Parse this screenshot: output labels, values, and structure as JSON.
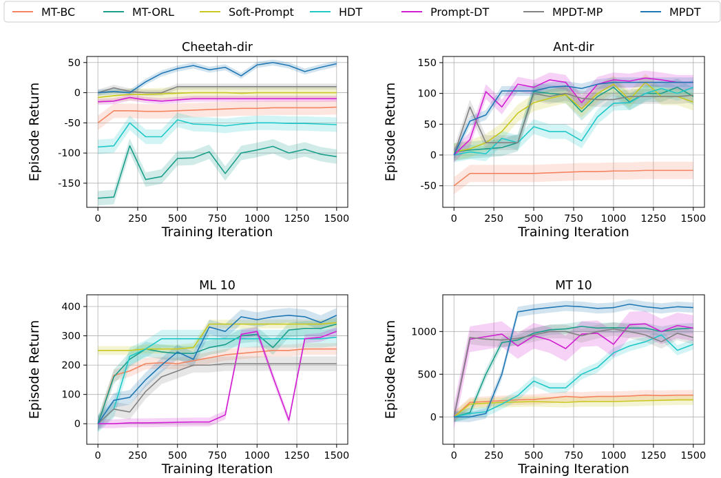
{
  "legend": {
    "placement": "top",
    "items": [
      {
        "label": "MT-BC",
        "color": "#f4845f"
      },
      {
        "label": "MT-ORL",
        "color": "#1a9e8a"
      },
      {
        "label": "Soft-Prompt",
        "color": "#c8c81e"
      },
      {
        "label": "HDT",
        "color": "#1ec8c8"
      },
      {
        "label": "Prompt-DT",
        "color": "#d21ed2"
      },
      {
        "label": "MPDT-MP",
        "color": "#828282"
      },
      {
        "label": "MPDT",
        "color": "#1f77b4"
      }
    ]
  },
  "chart_data": [
    {
      "type": "line",
      "title": "Cheetah-dir",
      "xlabel": "Training Iteration",
      "ylabel": "Episode Return",
      "xlim": [
        -70,
        1570
      ],
      "ylim": [
        -190,
        60
      ],
      "xticks": [
        0,
        250,
        500,
        750,
        1000,
        1250,
        1500
      ],
      "yticks": [
        -150,
        -100,
        -50,
        0,
        50
      ],
      "grid": true,
      "x": [
        0,
        100,
        200,
        300,
        400,
        500,
        600,
        700,
        800,
        900,
        1000,
        1100,
        1200,
        1300,
        1400,
        1500
      ],
      "series": [
        {
          "name": "MT-BC",
          "values": [
            -50,
            -30,
            -30,
            -31,
            -31,
            -30,
            -29,
            -28,
            -27,
            -26,
            -26,
            -25,
            -25,
            -25,
            -25,
            -24
          ],
          "band": 12
        },
        {
          "name": "MT-ORL",
          "values": [
            -175,
            -173,
            -88,
            -144,
            -139,
            -109,
            -108,
            -98,
            -134,
            -100,
            -95,
            -89,
            -100,
            -94,
            -102,
            -106
          ],
          "band": 12
        },
        {
          "name": "Soft-Prompt",
          "values": [
            -8,
            -5,
            -3,
            -3,
            -2,
            -1,
            0,
            0,
            0,
            -1,
            0,
            0,
            0,
            0,
            0,
            0
          ],
          "band": 10
        },
        {
          "name": "HDT",
          "values": [
            -90,
            -88,
            -50,
            -73,
            -73,
            -45,
            -52,
            -53,
            -55,
            -52,
            -50,
            -50,
            -51,
            -51,
            -52,
            -53
          ],
          "band": 12
        },
        {
          "name": "Prompt-DT",
          "values": [
            -15,
            -14,
            -8,
            -12,
            -14,
            -12,
            -10,
            -10,
            -10,
            -10,
            -10,
            -10,
            -10,
            -10,
            -10,
            -10
          ],
          "band": 5
        },
        {
          "name": "MPDT-MP",
          "values": [
            0,
            8,
            2,
            0,
            0,
            10,
            10,
            10,
            10,
            10,
            10,
            10,
            10,
            10,
            10,
            10
          ],
          "band": 5
        },
        {
          "name": "MPDT",
          "values": [
            0,
            2,
            0,
            18,
            32,
            40,
            45,
            38,
            42,
            28,
            46,
            50,
            45,
            35,
            42,
            48
          ],
          "band": 5
        }
      ]
    },
    {
      "type": "line",
      "title": "Ant-dir",
      "xlabel": "Training Iteration",
      "ylabel": "Episode Return",
      "xlim": [
        -70,
        1570
      ],
      "ylim": [
        -85,
        160
      ],
      "xticks": [
        0,
        250,
        500,
        750,
        1000,
        1250,
        1500
      ],
      "yticks": [
        -50,
        0,
        50,
        100,
        150
      ],
      "grid": true,
      "x": [
        0,
        100,
        200,
        300,
        400,
        500,
        600,
        700,
        800,
        900,
        1000,
        1100,
        1200,
        1300,
        1400,
        1500
      ],
      "series": [
        {
          "name": "MT-BC",
          "values": [
            -50,
            -30,
            -30,
            -30,
            -30,
            -30,
            -29,
            -28,
            -27,
            -27,
            -26,
            -26,
            -25,
            -25,
            -25,
            -25
          ],
          "band": 14
        },
        {
          "name": "MT-ORL",
          "values": [
            5,
            8,
            10,
            12,
            20,
            103,
            100,
            98,
            70,
            95,
            110,
            86,
            100,
            100,
            110,
            95
          ],
          "band": 14
        },
        {
          "name": "Soft-Prompt",
          "values": [
            5,
            10,
            20,
            38,
            68,
            85,
            92,
            98,
            75,
            100,
            115,
            90,
            118,
            95,
            95,
            86
          ],
          "band": 14
        },
        {
          "name": "HDT",
          "values": [
            0,
            5,
            2,
            27,
            20,
            46,
            38,
            38,
            23,
            62,
            84,
            85,
            100,
            108,
            100,
            110
          ],
          "band": 12
        },
        {
          "name": "Prompt-DT",
          "values": [
            0,
            25,
            103,
            78,
            115,
            110,
            122,
            118,
            85,
            115,
            122,
            120,
            125,
            122,
            118,
            118
          ],
          "band": 12
        },
        {
          "name": "MPDT-MP",
          "values": [
            0,
            78,
            20,
            20,
            20,
            100,
            95,
            100,
            92,
            90,
            90,
            95,
            95,
            95,
            95,
            97
          ],
          "band": 12
        },
        {
          "name": "MPDT",
          "values": [
            0,
            55,
            65,
            104,
            104,
            104,
            110,
            112,
            108,
            115,
            118,
            118,
            118,
            118,
            118,
            118
          ],
          "band": 8
        }
      ]
    },
    {
      "type": "line",
      "title": "ML 10",
      "xlabel": "Training Iteration",
      "ylabel": "Episode Return",
      "xlim": [
        -70,
        1570
      ],
      "ylim": [
        -70,
        440
      ],
      "xticks": [
        0,
        250,
        500,
        750,
        1000,
        1250,
        1500
      ],
      "yticks": [
        0,
        100,
        200,
        300,
        400
      ],
      "grid": true,
      "x": [
        0,
        100,
        200,
        300,
        400,
        500,
        600,
        700,
        800,
        900,
        1000,
        1100,
        1200,
        1300,
        1400,
        1500
      ],
      "series": [
        {
          "name": "MT-BC",
          "values": [
            0,
            165,
            180,
            205,
            208,
            205,
            215,
            225,
            235,
            240,
            245,
            250,
            250,
            255,
            255,
            255
          ],
          "band": 20
        },
        {
          "name": "MT-ORL",
          "values": [
            0,
            160,
            220,
            255,
            245,
            240,
            240,
            260,
            270,
            300,
            305,
            260,
            320,
            325,
            325,
            340
          ],
          "band": 25
        },
        {
          "name": "Soft-Prompt",
          "values": [
            250,
            250,
            250,
            255,
            255,
            255,
            260,
            340,
            340,
            340,
            340,
            340,
            340,
            340,
            340,
            345
          ],
          "band": 15
        },
        {
          "name": "HDT",
          "values": [
            0,
            50,
            230,
            255,
            290,
            290,
            290,
            290,
            290,
            290,
            290,
            290,
            290,
            290,
            290,
            295
          ],
          "band": 30
        },
        {
          "name": "Prompt-DT",
          "values": [
            0,
            0,
            3,
            3,
            4,
            5,
            6,
            6,
            30,
            305,
            315,
            160,
            12,
            290,
            295,
            315
          ],
          "band": 15
        },
        {
          "name": "MPDT-MP",
          "values": [
            0,
            50,
            40,
            110,
            160,
            180,
            200,
            200,
            205,
            205,
            205,
            205,
            205,
            205,
            205,
            205
          ],
          "band": 25
        },
        {
          "name": "MPDT",
          "values": [
            0,
            80,
            90,
            150,
            200,
            245,
            220,
            330,
            315,
            365,
            355,
            365,
            370,
            365,
            345,
            370
          ],
          "band": 25
        }
      ]
    },
    {
      "type": "line",
      "title": "MT 10",
      "xlabel": "Training Iteration",
      "ylabel": "Episode Return",
      "xlim": [
        -70,
        1570
      ],
      "ylim": [
        -320,
        1430
      ],
      "xticks": [
        0,
        250,
        500,
        750,
        1000,
        1250,
        1500
      ],
      "yticks": [
        0,
        500,
        1000
      ],
      "grid": true,
      "x": [
        0,
        100,
        200,
        300,
        400,
        500,
        600,
        700,
        800,
        900,
        1000,
        1100,
        1200,
        1300,
        1400,
        1500
      ],
      "series": [
        {
          "name": "MT-BC",
          "values": [
            0,
            170,
            180,
            190,
            200,
            205,
            220,
            240,
            230,
            240,
            240,
            245,
            255,
            250,
            255,
            255
          ],
          "band": 60
        },
        {
          "name": "MT-ORL",
          "values": [
            0,
            50,
            500,
            870,
            900,
            980,
            1020,
            1030,
            1060,
            1040,
            1045,
            1040,
            1040,
            1000,
            1030,
            1040
          ],
          "band": 60
        },
        {
          "name": "Soft-Prompt",
          "values": [
            0,
            150,
            160,
            170,
            175,
            180,
            175,
            170,
            180,
            180,
            180,
            185,
            190,
            195,
            200,
            200
          ],
          "band": 60
        },
        {
          "name": "HDT",
          "values": [
            0,
            40,
            60,
            150,
            250,
            420,
            340,
            340,
            500,
            580,
            750,
            830,
            880,
            960,
            780,
            850
          ],
          "band": 60
        },
        {
          "name": "Prompt-DT",
          "values": [
            0,
            910,
            940,
            970,
            830,
            950,
            900,
            800,
            970,
            980,
            850,
            1080,
            1090,
            1000,
            1070,
            1040
          ],
          "band": 150
        },
        {
          "name": "MPDT-MP",
          "values": [
            0,
            930,
            910,
            900,
            920,
            960,
            1000,
            1000,
            950,
            1000,
            1030,
            1000,
            960,
            880,
            980,
            930
          ],
          "band": 80
        },
        {
          "name": "MPDT",
          "values": [
            0,
            0,
            40,
            500,
            1230,
            1260,
            1280,
            1300,
            1290,
            1270,
            1280,
            1320,
            1290,
            1270,
            1290,
            1280
          ],
          "band": 60
        }
      ]
    }
  ]
}
